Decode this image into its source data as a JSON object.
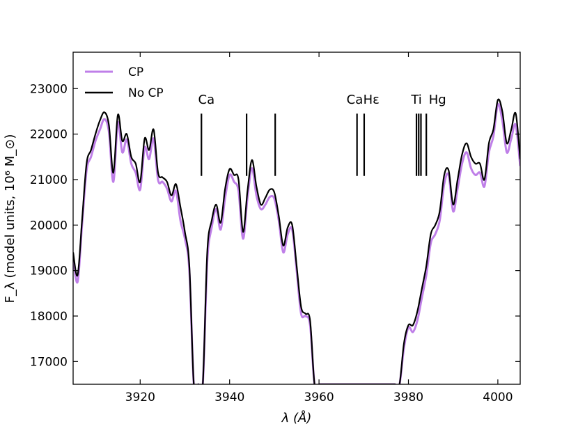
{
  "chart_data": {
    "type": "line",
    "xlabel": "λ (Å)",
    "ylabel": "F_λ (model units, 10⁶ M_⊙)",
    "xlim": [
      3905,
      4005
    ],
    "ylim": [
      16500,
      23800
    ],
    "xticks": [
      3920,
      3940,
      3960,
      3980,
      4000
    ],
    "yticks": [
      17000,
      18000,
      19000,
      20000,
      21000,
      22000,
      23000
    ],
    "legend_position": "top-left",
    "grid": false,
    "series": [
      {
        "name": "CP",
        "color": "#bf7fe8",
        "x": [
          3905,
          3906,
          3907,
          3908,
          3909,
          3910,
          3911,
          3912,
          3913,
          3914,
          3915,
          3916,
          3917,
          3918,
          3919,
          3920,
          3921,
          3922,
          3923,
          3924,
          3925,
          3926,
          3927,
          3928,
          3929,
          3930,
          3931,
          3932,
          3933,
          3934,
          3935,
          3936,
          3937,
          3938,
          3939,
          3940,
          3941,
          3942,
          3943,
          3944,
          3945,
          3946,
          3947,
          3948,
          3949,
          3950,
          3951,
          3952,
          3953,
          3954,
          3955,
          3956,
          3957,
          3958,
          3959,
          3960,
          3961,
          3962,
          3975,
          3976,
          3977,
          3978,
          3979,
          3980,
          3981,
          3982,
          3983,
          3984,
          3985,
          3986,
          3987,
          3988,
          3989,
          3990,
          3991,
          3992,
          3993,
          3994,
          3995,
          3996,
          3997,
          3998,
          3999,
          4000,
          4001,
          4002,
          4003,
          4004,
          4005
        ],
        "y": [
          19300,
          18750,
          20000,
          21200,
          21500,
          21850,
          22100,
          22330,
          22050,
          20950,
          22250,
          21600,
          21880,
          21350,
          21150,
          20780,
          21700,
          21450,
          21900,
          20990,
          20950,
          20800,
          20520,
          20750,
          20100,
          19700,
          19000,
          16500,
          16500,
          16500,
          19200,
          19950,
          20350,
          19900,
          20600,
          21100,
          20950,
          20750,
          19700,
          20600,
          21250,
          20650,
          20350,
          20450,
          20620,
          20580,
          20100,
          19400,
          19800,
          19900,
          19000,
          18050,
          18000,
          17800,
          16500,
          16500,
          16500,
          16500,
          16500,
          16500,
          16500,
          16500,
          17300,
          17750,
          17650,
          17900,
          18400,
          18900,
          19600,
          19800,
          20100,
          20900,
          21100,
          20300,
          20800,
          21350,
          21600,
          21250,
          21100,
          21150,
          20850,
          21600,
          21950,
          22650,
          22300,
          21600,
          21900,
          22200,
          21300
        ]
      },
      {
        "name": "No CP",
        "color": "#000000",
        "x": [
          3905,
          3906,
          3907,
          3908,
          3909,
          3910,
          3911,
          3912,
          3913,
          3914,
          3915,
          3916,
          3917,
          3918,
          3919,
          3920,
          3921,
          3922,
          3923,
          3924,
          3925,
          3926,
          3927,
          3928,
          3929,
          3930,
          3931,
          3932,
          3933,
          3934,
          3935,
          3936,
          3937,
          3938,
          3939,
          3940,
          3941,
          3942,
          3943,
          3944,
          3945,
          3946,
          3947,
          3948,
          3949,
          3950,
          3951,
          3952,
          3953,
          3954,
          3955,
          3956,
          3957,
          3958,
          3959,
          3960,
          3961,
          3962,
          3975,
          3976,
          3977,
          3978,
          3979,
          3980,
          3981,
          3982,
          3983,
          3984,
          3985,
          3986,
          3987,
          3988,
          3989,
          3990,
          3991,
          3992,
          3993,
          3994,
          3995,
          3996,
          3997,
          3998,
          3999,
          4000,
          4001,
          4002,
          4003,
          4004,
          4005
        ],
        "y": [
          19400,
          18900,
          20100,
          21350,
          21650,
          22000,
          22300,
          22480,
          22200,
          21150,
          22420,
          21850,
          22000,
          21500,
          21350,
          20950,
          21900,
          21650,
          22100,
          21150,
          21050,
          20950,
          20650,
          20900,
          20400,
          19850,
          19100,
          16500,
          16500,
          16500,
          19400,
          20100,
          20450,
          20050,
          20800,
          21230,
          21100,
          21000,
          19850,
          20750,
          21430,
          20850,
          20450,
          20600,
          20780,
          20720,
          20200,
          19550,
          19950,
          20000,
          19100,
          18200,
          18050,
          17900,
          16500,
          16500,
          16500,
          16500,
          16500,
          16500,
          16500,
          16500,
          17400,
          17800,
          17800,
          18100,
          18600,
          19100,
          19800,
          20000,
          20300,
          21100,
          21200,
          20450,
          21000,
          21550,
          21800,
          21500,
          21350,
          21350,
          21000,
          21800,
          22100,
          22750,
          22500,
          21800,
          22100,
          22450,
          21450
        ]
      }
    ],
    "line_markers": [
      {
        "x": 3933.7,
        "label": "Ca",
        "label_x": 3934.8
      },
      {
        "x": 3943.8,
        "label": ""
      },
      {
        "x": 3950.2,
        "label": ""
      },
      {
        "x": 3968.5,
        "label": "Ca",
        "label_x": 3968.0
      },
      {
        "x": 3970.1,
        "label": "Hε",
        "label_x": 3971.7
      },
      {
        "x": 3981.8,
        "label": "Ti",
        "label_x": 3981.8
      },
      {
        "x": 3982.3,
        "label": ""
      },
      {
        "x": 3982.8,
        "label": ""
      },
      {
        "x": 3984.0,
        "label": "Hg",
        "label_x": 3986.5
      }
    ]
  }
}
